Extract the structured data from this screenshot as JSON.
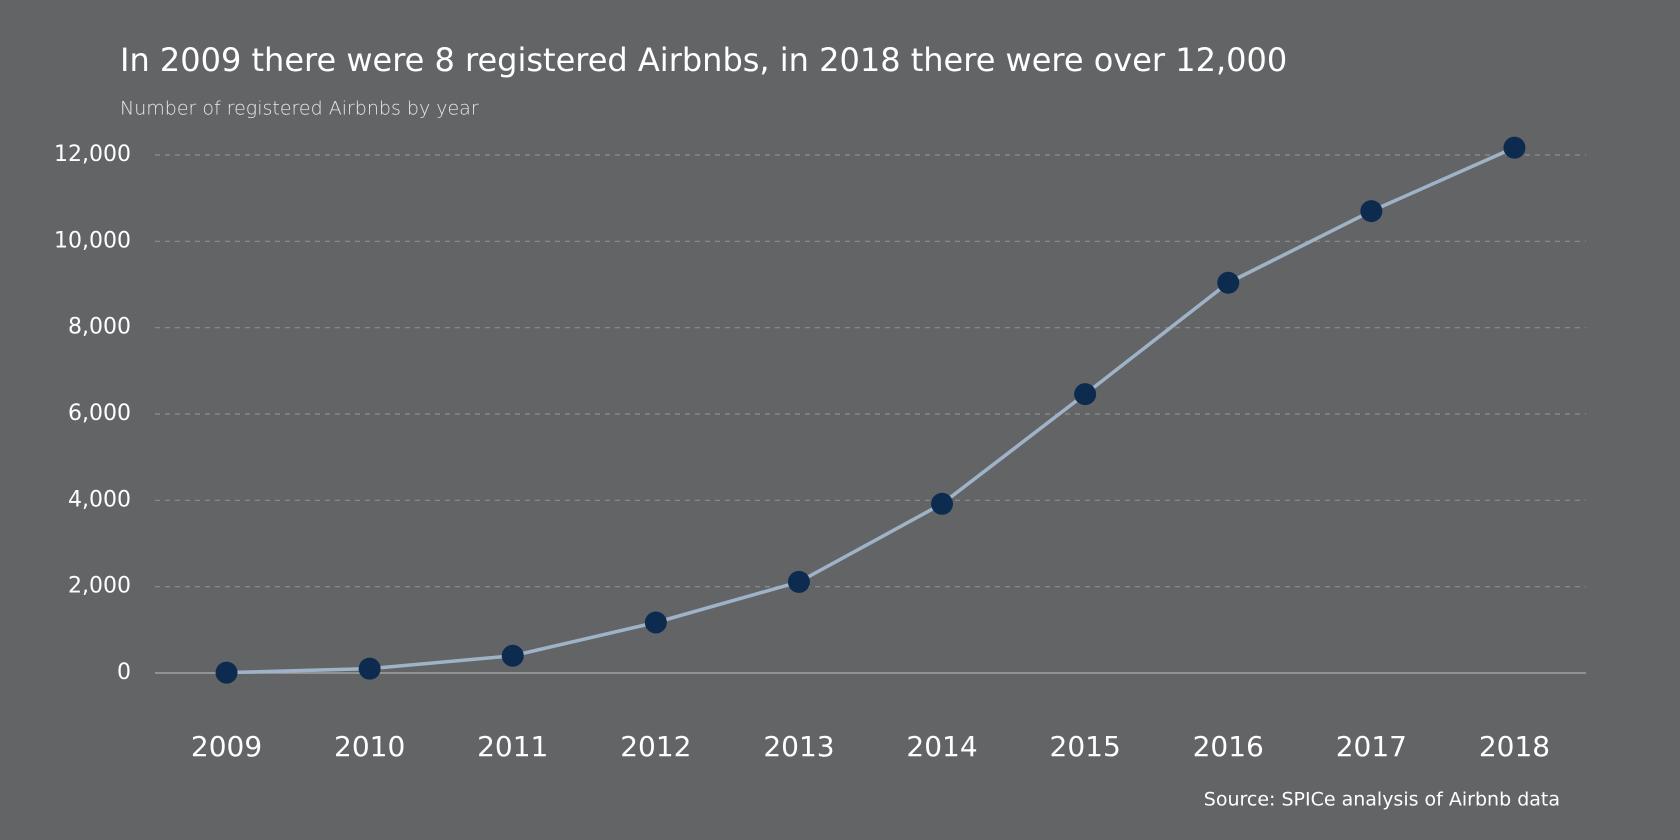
{
  "chart_data": {
    "type": "line",
    "title": "In 2009 there were 8 registered Airbnbs, in 2018 there were over 12,000",
    "subtitle": "Number of registered Airbnbs by year",
    "source": "Source: SPICe analysis of Airbnb data",
    "categories": [
      "2009",
      "2010",
      "2011",
      "2012",
      "2013",
      "2014",
      "2015",
      "2016",
      "2017",
      "2018"
    ],
    "series": [
      {
        "name": "Registered Airbnbs",
        "color": "#9fb3c8",
        "marker_color": "#0d2b4f",
        "values": [
          8,
          100,
          400,
          1170,
          2110,
          3920,
          6460,
          9040,
          10700,
          12170
        ]
      }
    ],
    "ylim": [
      0,
      12000
    ],
    "yticks": [
      0,
      {
        "value": 2000,
        "label": "2,000"
      },
      {
        "value": 4000,
        "label": "4,000"
      },
      {
        "value": 6000,
        "label": "6,000"
      },
      {
        "value": 8000,
        "label": "8,000"
      },
      {
        "value": 10000,
        "label": "10,000"
      },
      {
        "value": 12000,
        "label": "12,000"
      }
    ],
    "grid": true
  }
}
